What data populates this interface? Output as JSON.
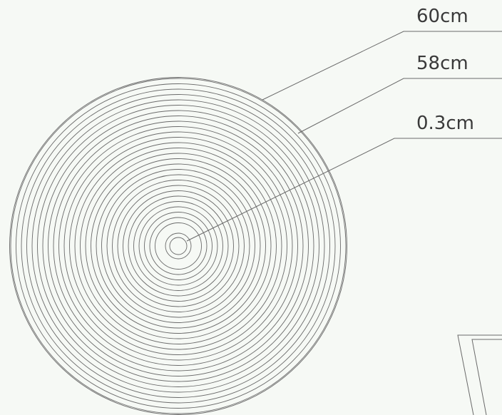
{
  "labels": {
    "outer_diameter": "60cm",
    "inner_diameter": "58cm",
    "center_hole": "0.3cm"
  },
  "colors": {
    "line": "#6a6a6a",
    "text": "#3a3a3a",
    "background": "#f6f9f5"
  }
}
